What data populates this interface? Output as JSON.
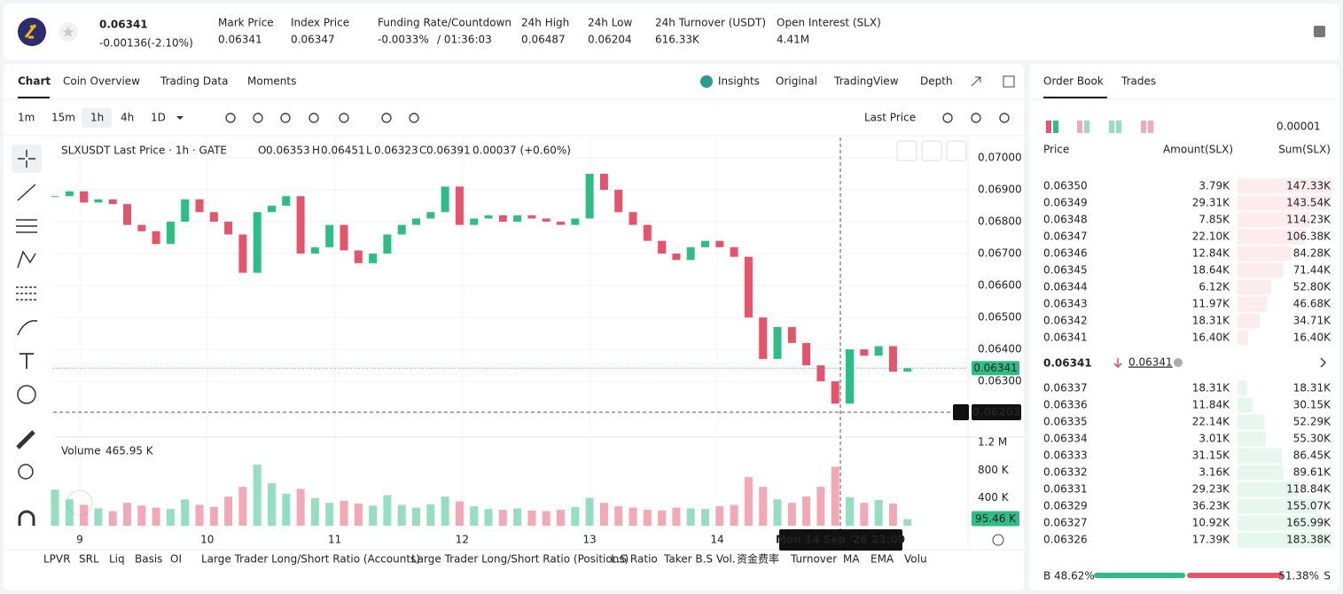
{
  "header": {
    "price": "0.06341",
    "change": "-0.00136(-2.10%)",
    "stats": [
      {
        "label": "Mark Price",
        "value": "0.06341"
      },
      {
        "label": "Index Price",
        "value": "0.06347"
      },
      {
        "label": "Funding Rate/Countdown",
        "value": "-0.0033%",
        "extra": "/ 01:36:03"
      },
      {
        "label": "24h High",
        "value": "0.06487"
      },
      {
        "label": "24h Low",
        "value": "0.06204"
      },
      {
        "label": "24h Turnover (USDT)",
        "value": "616.33K"
      },
      {
        "label": "Open Interest (SLX)",
        "value": "4.41M"
      }
    ]
  },
  "tabs": [
    "Chart",
    "Coin Overview",
    "Trading Data",
    "Moments"
  ],
  "views": [
    "Insights",
    "Original",
    "TradingView",
    "Depth"
  ],
  "toolbar": {
    "intervals": [
      "1m",
      "15m",
      "1h",
      "4h",
      "1D"
    ],
    "price_type": "Last Price"
  },
  "chart_data": {
    "type": "candlestick",
    "legend": {
      "title": "SLXUSDT Last Price · 1h · GATE",
      "ohlc": [
        {
          "key": "O",
          "value": "0.06353"
        },
        {
          "key": "H",
          "value": "0.06451"
        },
        {
          "key": "L",
          "value": "0.06323"
        },
        {
          "key": "C",
          "value": "0.06391"
        }
      ],
      "change": "0.00037 (+0.60%)"
    },
    "colors": {
      "up": "#2ebd85",
      "down": "#e5546b"
    },
    "closes": [
      0.0688,
      0.06895,
      0.0686,
      0.0687,
      0.06855,
      0.0679,
      0.0677,
      0.0673,
      0.068,
      0.0687,
      0.0683,
      0.068,
      0.0676,
      0.0664,
      0.0683,
      0.0685,
      0.0688,
      0.067,
      0.0672,
      0.0679,
      0.0671,
      0.0667,
      0.067,
      0.0676,
      0.0679,
      0.0681,
      0.0683,
      0.0691,
      0.0679,
      0.0681,
      0.0682,
      0.068,
      0.0682,
      0.0681,
      0.068,
      0.0679,
      0.0681,
      0.0695,
      0.069,
      0.0683,
      0.0679,
      0.0674,
      0.067,
      0.0668,
      0.0672,
      0.0674,
      0.0672,
      0.0669,
      0.065,
      0.0637,
      0.0647,
      0.0642,
      0.0635,
      0.063,
      0.0623,
      0.064,
      0.0638,
      0.0641,
      0.0633,
      0.06341
    ],
    "ylim": [
      0.06128,
      0.07064
    ],
    "yticks": [
      {
        "value": 0.07,
        "label": "0.07000"
      },
      {
        "value": 0.069,
        "label": "0.06900"
      },
      {
        "value": 0.068,
        "label": "0.06800"
      },
      {
        "value": 0.067,
        "label": "0.06700"
      },
      {
        "value": 0.066,
        "label": "0.06600"
      },
      {
        "value": 0.065,
        "label": "0.06500"
      },
      {
        "value": 0.064,
        "label": "0.06400"
      },
      {
        "value": 0.063,
        "label": "0.06300"
      }
    ],
    "xticks": [
      "9",
      "10",
      "11",
      "12",
      "13",
      "14"
    ],
    "last_price": 0.06341,
    "crosshair_price": 0.06203,
    "crosshair_time": "Mon 14 Sep '26   23:00",
    "volume": {
      "title": "Volume",
      "current": "465.95 K",
      "values": [
        520000,
        380000,
        300000,
        250000,
        210000,
        330000,
        290000,
        260000,
        240000,
        380000,
        300000,
        270000,
        420000,
        560000,
        880000,
        610000,
        460000,
        530000,
        400000,
        330000,
        360000,
        320000,
        290000,
        440000,
        300000,
        260000,
        310000,
        420000,
        350000,
        280000,
        240000,
        230000,
        250000,
        220000,
        210000,
        230000,
        270000,
        400000,
        330000,
        280000,
        260000,
        230000,
        220000,
        260000,
        250000,
        240000,
        280000,
        300000,
        700000,
        560000,
        380000,
        330000,
        420000,
        560000,
        850000,
        410000,
        330000,
        370000,
        320000,
        95460
      ],
      "last_label": "95.46 K",
      "ylim": [
        0,
        1200000
      ],
      "yticks": [
        {
          "value": 1200000,
          "label": "1.2 M"
        },
        {
          "value": 800000,
          "label": "800 K"
        },
        {
          "value": 400000,
          "label": "400 K"
        }
      ]
    }
  },
  "indicators": [
    "LPVR",
    "SRL",
    "Liq",
    "Basis",
    "OI",
    "Large Trader Long/Short Ratio (Accounts)",
    "Large Trader Long/Short Ratio (Positions)",
    "L.S Ratio",
    "Taker B.S Vol.",
    "资金费率",
    "Turnover",
    "MA",
    "EMA",
    "Volu"
  ],
  "order_book": {
    "tabs": [
      "Order Book",
      "Trades"
    ],
    "precision": "0.00001",
    "columns": [
      "Price",
      "Amount(SLX)",
      "Sum(SLX)"
    ],
    "asks": [
      [
        "0.06350",
        "3.79K",
        "147.33K"
      ],
      [
        "0.06349",
        "29.31K",
        "143.54K"
      ],
      [
        "0.06348",
        "7.85K",
        "114.23K"
      ],
      [
        "0.06347",
        "22.10K",
        "106.38K"
      ],
      [
        "0.06346",
        "12.84K",
        "84.28K"
      ],
      [
        "0.06345",
        "18.64K",
        "71.44K"
      ],
      [
        "0.06344",
        "6.12K",
        "52.80K"
      ],
      [
        "0.06343",
        "11.97K",
        "46.68K"
      ],
      [
        "0.06342",
        "18.31K",
        "34.71K"
      ],
      [
        "0.06341",
        "16.40K",
        "16.40K"
      ]
    ],
    "mid": "0.06341",
    "mark": "0.06341",
    "bids": [
      [
        "0.06337",
        "18.31K",
        "18.31K"
      ],
      [
        "0.06336",
        "11.84K",
        "30.15K"
      ],
      [
        "0.06335",
        "22.14K",
        "52.29K"
      ],
      [
        "0.06334",
        "3.01K",
        "55.30K"
      ],
      [
        "0.06333",
        "31.15K",
        "86.45K"
      ],
      [
        "0.06332",
        "3.16K",
        "89.61K"
      ],
      [
        "0.06331",
        "29.23K",
        "118.84K"
      ],
      [
        "0.06329",
        "36.23K",
        "155.07K"
      ],
      [
        "0.06327",
        "10.92K",
        "165.99K"
      ],
      [
        "0.06326",
        "17.39K",
        "183.38K"
      ]
    ],
    "buy_label": "B",
    "buy": "48.62%",
    "sell": "51.38%",
    "sell_label": "S"
  }
}
